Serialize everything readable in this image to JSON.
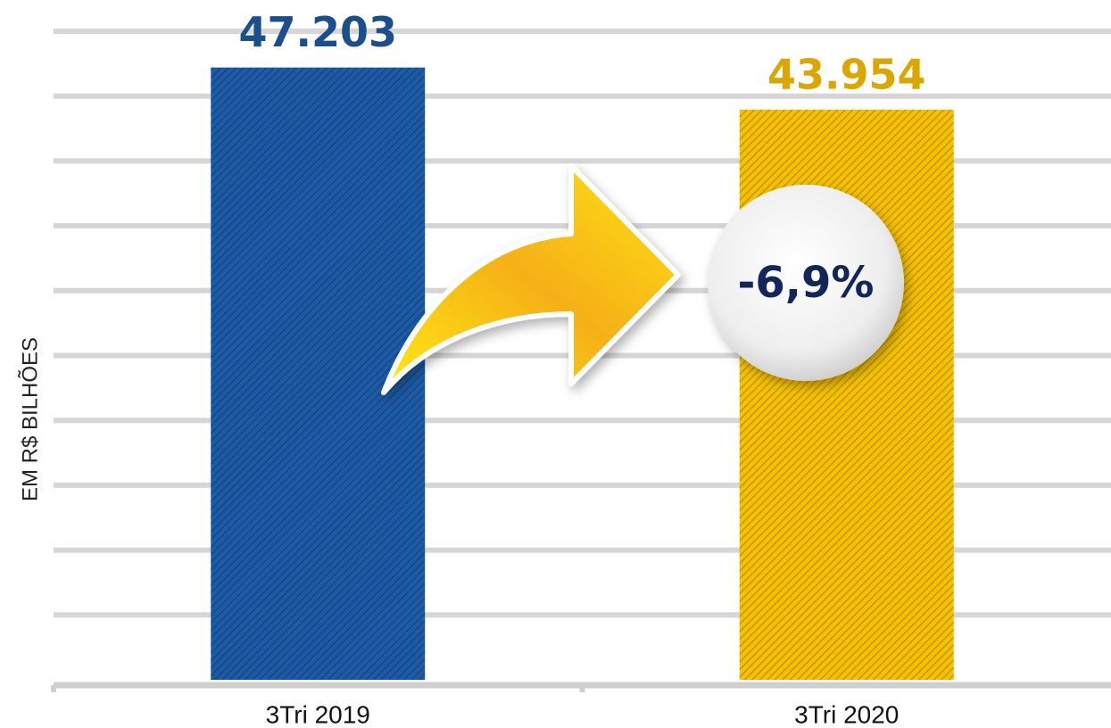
{
  "chart_data": {
    "type": "bar",
    "y_axis_label": "EM R$ BILHÕES",
    "categories": [
      "3Tri 2019",
      "3Tri 2020"
    ],
    "values": [
      47203,
      43954
    ],
    "value_labels": [
      "47.203",
      "43.954"
    ],
    "colors": [
      "#1d5ba6",
      "#f7c100"
    ],
    "value_label_colors": [
      "#1a4f8c",
      "#dba600"
    ],
    "annotation": "-6,9%",
    "ylim": [
      0,
      50000
    ],
    "yticks": [
      0,
      5000,
      10000,
      15000,
      20000,
      25000,
      30000,
      35000,
      40000,
      45000,
      50000
    ],
    "grid": true
  }
}
